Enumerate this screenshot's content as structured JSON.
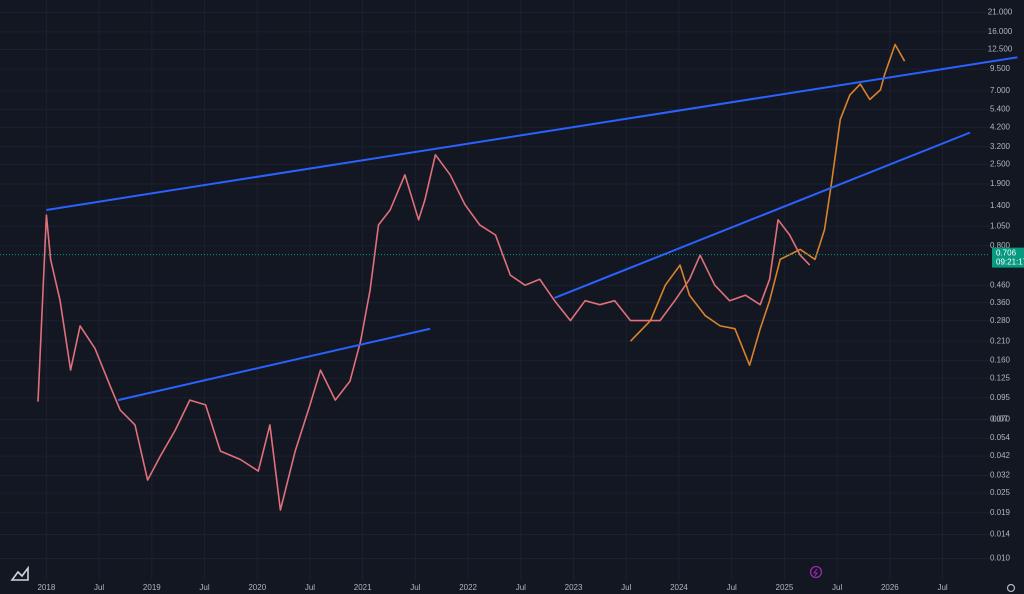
{
  "chart_data": {
    "type": "line",
    "log_scale": true,
    "grid": true,
    "xlim": [
      2017.56,
      2026.95
    ],
    "ylim": [
      0.0074,
      25
    ],
    "xticks": [
      {
        "value": 2018,
        "label": "2018"
      },
      {
        "value": 2018.5,
        "label": "Jul"
      },
      {
        "value": 2019,
        "label": "2019"
      },
      {
        "value": 2019.5,
        "label": "Jul"
      },
      {
        "value": 2020,
        "label": "2020"
      },
      {
        "value": 2020.5,
        "label": "Jul"
      },
      {
        "value": 2021,
        "label": "2021"
      },
      {
        "value": 2021.5,
        "label": "Jul"
      },
      {
        "value": 2022,
        "label": "2022"
      },
      {
        "value": 2022.5,
        "label": "Jul"
      },
      {
        "value": 2023,
        "label": "2023"
      },
      {
        "value": 2023.5,
        "label": "Jul"
      },
      {
        "value": 2024,
        "label": "2024"
      },
      {
        "value": 2024.5,
        "label": "Jul"
      },
      {
        "value": 2025,
        "label": "2025"
      },
      {
        "value": 2025.5,
        "label": "Jul"
      },
      {
        "value": 2026,
        "label": "2026"
      },
      {
        "value": 2026.5,
        "label": "Jul"
      }
    ],
    "yticks": [
      {
        "value": 21,
        "label": "21.000"
      },
      {
        "value": 16,
        "label": "16.000"
      },
      {
        "value": 12.5,
        "label": "12.500"
      },
      {
        "value": 9.5,
        "label": "9.500"
      },
      {
        "value": 7,
        "label": "7.000"
      },
      {
        "value": 5.4,
        "label": "5.400"
      },
      {
        "value": 4.2,
        "label": "4.200"
      },
      {
        "value": 3.2,
        "label": "3.200"
      },
      {
        "value": 2.5,
        "label": "2.500"
      },
      {
        "value": 1.9,
        "label": "1.900"
      },
      {
        "value": 1.4,
        "label": "1.400"
      },
      {
        "value": 1.05,
        "label": "1.050"
      },
      {
        "value": 0.8,
        "label": "0.800"
      },
      {
        "value": 0.46,
        "label": "0.460"
      },
      {
        "value": 0.36,
        "label": "0.360"
      },
      {
        "value": 0.28,
        "label": "0.280"
      },
      {
        "value": 0.21,
        "label": "0.210"
      },
      {
        "value": 0.16,
        "label": "0.160"
      },
      {
        "value": 0.125,
        "label": "0.125"
      },
      0.095,
      0.07,
      {
        "value": 0.07,
        "label": "0.070"
      },
      0.054,
      0.042,
      0.032,
      0.025,
      0.019,
      0.014,
      {
        "value": 0.01,
        "label": "0.010"
      }
    ],
    "series": [
      {
        "color": "#e0707a",
        "x": [
          2017.92,
          2018.0,
          2018.04,
          2018.13,
          2018.23,
          2018.32,
          2018.46,
          2018.61,
          2018.7,
          2018.84,
          2018.96,
          2019.08,
          2019.22,
          2019.36,
          2019.51,
          2019.65,
          2019.84,
          2020.01,
          2020.12,
          2020.22,
          2020.36,
          2020.5,
          2020.6,
          2020.74,
          2020.88,
          2020.98,
          2021.07,
          2021.15,
          2021.26,
          2021.4,
          2021.53,
          2021.59,
          2021.69,
          2021.83,
          2021.97,
          2022.11,
          2022.26,
          2022.4,
          2022.54,
          2022.68,
          2022.82,
          2022.97,
          2023.11,
          2023.25,
          2023.39,
          2023.54,
          2023.68,
          2023.82,
          2023.96,
          2024.1,
          2024.2,
          2024.34,
          2024.48,
          2024.63,
          2024.77,
          2024.86,
          2024.94,
          2025.05,
          2025.15,
          2025.24
        ],
        "values": [
          0.09,
          1.23,
          0.66,
          0.37,
          0.14,
          0.26,
          0.19,
          0.11,
          0.08,
          0.065,
          0.03,
          0.042,
          0.06,
          0.092,
          0.086,
          0.045,
          0.04,
          0.034,
          0.065,
          0.0197,
          0.045,
          0.086,
          0.14,
          0.092,
          0.12,
          0.21,
          0.43,
          1.07,
          1.32,
          2.16,
          1.15,
          1.52,
          2.86,
          2.16,
          1.42,
          1.07,
          0.93,
          0.53,
          0.46,
          0.5,
          0.37,
          0.28,
          0.37,
          0.35,
          0.37,
          0.28,
          0.28,
          0.28,
          0.37,
          0.5,
          0.7,
          0.46,
          0.37,
          0.4,
          0.35,
          0.5,
          1.15,
          0.93,
          0.7,
          0.61
        ]
      },
      {
        "color": "#d9822b",
        "x": [
          2023.54,
          2023.73,
          2023.87,
          2024.01,
          2024.1,
          2024.25,
          2024.39,
          2024.53,
          2024.67,
          2024.77,
          2024.86,
          2024.96,
          2025.15,
          2025.29,
          2025.38,
          2025.45,
          2025.53,
          2025.62,
          2025.72,
          2025.81,
          2025.91,
          2025.95,
          2026.05,
          2026.14
        ],
        "values": [
          0.21,
          0.28,
          0.46,
          0.61,
          0.4,
          0.3,
          0.26,
          0.25,
          0.15,
          0.25,
          0.37,
          0.66,
          0.76,
          0.66,
          1.0,
          2.0,
          4.7,
          6.6,
          7.7,
          6.2,
          7.1,
          8.8,
          13.4,
          10.6
        ]
      }
    ],
    "trendline_color": "#2962ff",
    "trendlines": [
      {
        "x": [
          2018.0,
          2027.21
        ],
        "values": [
          1.32,
          11.2
        ]
      },
      {
        "x": [
          2018.68,
          2021.64
        ],
        "values": [
          0.092,
          0.25
        ]
      },
      {
        "x": [
          2022.82,
          2026.76
        ],
        "values": [
          0.385,
          3.9
        ]
      }
    ],
    "last_price": 0.706,
    "last_price_color": "#089981",
    "countdown": "09:21:17"
  }
}
